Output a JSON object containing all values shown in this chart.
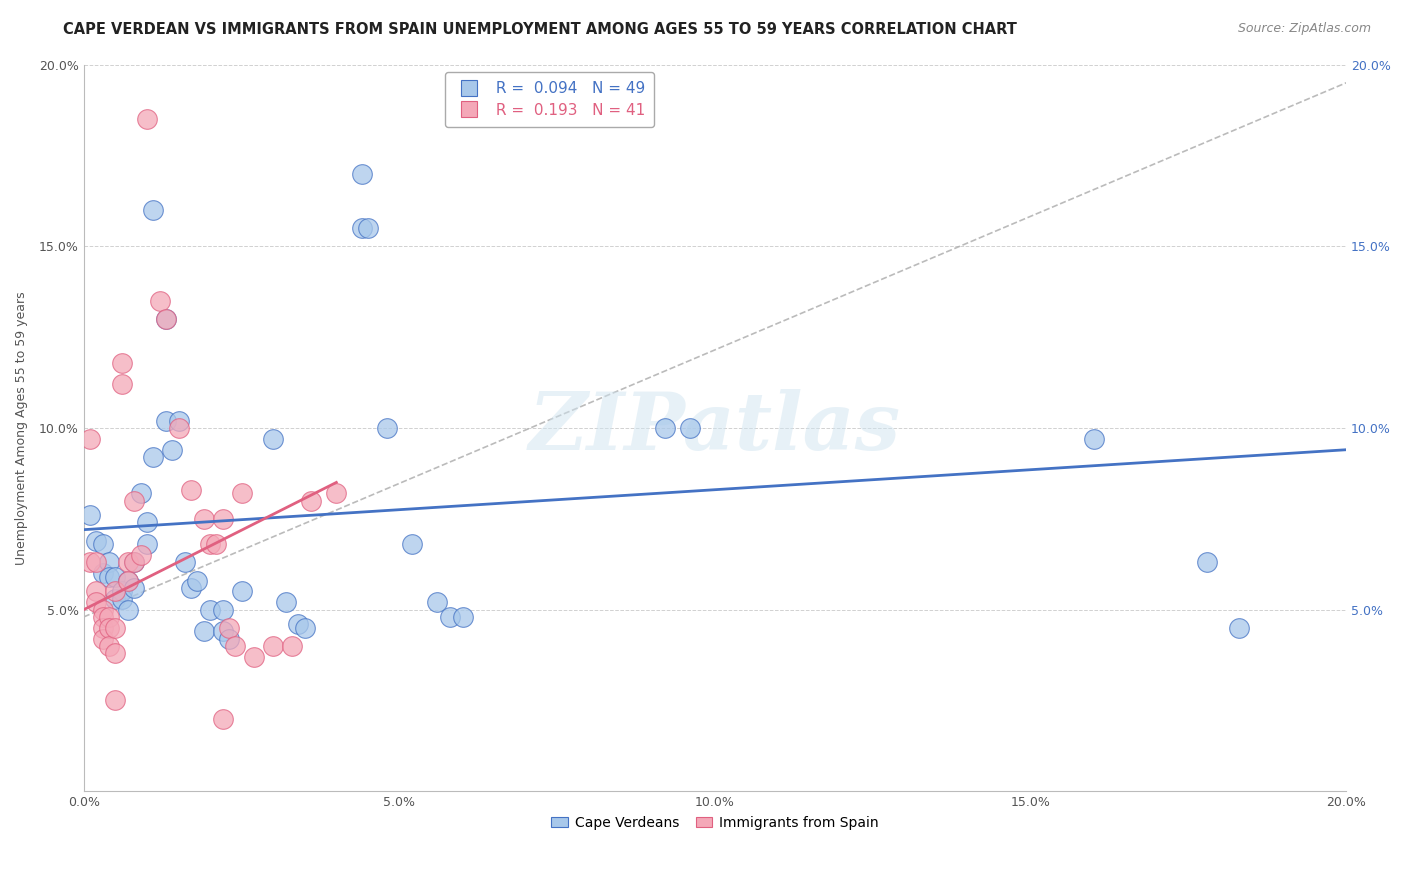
{
  "title": "CAPE VERDEAN VS IMMIGRANTS FROM SPAIN UNEMPLOYMENT AMONG AGES 55 TO 59 YEARS CORRELATION CHART",
  "source": "Source: ZipAtlas.com",
  "ylabel": "Unemployment Among Ages 55 to 59 years",
  "xlim": [
    0.0,
    0.2
  ],
  "ylim": [
    0.0,
    0.2
  ],
  "xticks": [
    0.0,
    0.05,
    0.1,
    0.15,
    0.2
  ],
  "yticks": [
    0.05,
    0.1,
    0.15,
    0.2
  ],
  "legend_entries": [
    {
      "label": "Cape Verdeans",
      "R": "0.094",
      "N": "49",
      "color": "#a8c8ea",
      "line_color": "#4472c4"
    },
    {
      "label": "Immigrants from Spain",
      "R": "0.193",
      "N": "41",
      "color": "#f4a8b8",
      "line_color": "#e06080"
    }
  ],
  "watermark": "ZIPatlas",
  "blue_scatter": [
    [
      0.001,
      0.076
    ],
    [
      0.002,
      0.069
    ],
    [
      0.003,
      0.068
    ],
    [
      0.003,
      0.06
    ],
    [
      0.004,
      0.063
    ],
    [
      0.004,
      0.059
    ],
    [
      0.005,
      0.059
    ],
    [
      0.005,
      0.053
    ],
    [
      0.006,
      0.055
    ],
    [
      0.006,
      0.053
    ],
    [
      0.007,
      0.058
    ],
    [
      0.007,
      0.05
    ],
    [
      0.008,
      0.063
    ],
    [
      0.008,
      0.056
    ],
    [
      0.009,
      0.082
    ],
    [
      0.01,
      0.074
    ],
    [
      0.01,
      0.068
    ],
    [
      0.011,
      0.16
    ],
    [
      0.011,
      0.092
    ],
    [
      0.013,
      0.13
    ],
    [
      0.013,
      0.102
    ],
    [
      0.014,
      0.094
    ],
    [
      0.015,
      0.102
    ],
    [
      0.016,
      0.063
    ],
    [
      0.017,
      0.056
    ],
    [
      0.018,
      0.058
    ],
    [
      0.019,
      0.044
    ],
    [
      0.02,
      0.05
    ],
    [
      0.022,
      0.05
    ],
    [
      0.022,
      0.044
    ],
    [
      0.023,
      0.042
    ],
    [
      0.025,
      0.055
    ],
    [
      0.03,
      0.097
    ],
    [
      0.032,
      0.052
    ],
    [
      0.034,
      0.046
    ],
    [
      0.035,
      0.045
    ],
    [
      0.044,
      0.17
    ],
    [
      0.044,
      0.155
    ],
    [
      0.045,
      0.155
    ],
    [
      0.048,
      0.1
    ],
    [
      0.052,
      0.068
    ],
    [
      0.056,
      0.052
    ],
    [
      0.058,
      0.048
    ],
    [
      0.06,
      0.048
    ],
    [
      0.092,
      0.1
    ],
    [
      0.096,
      0.1
    ],
    [
      0.16,
      0.097
    ],
    [
      0.178,
      0.063
    ],
    [
      0.183,
      0.045
    ]
  ],
  "pink_scatter": [
    [
      0.001,
      0.097
    ],
    [
      0.001,
      0.063
    ],
    [
      0.002,
      0.063
    ],
    [
      0.002,
      0.055
    ],
    [
      0.002,
      0.052
    ],
    [
      0.003,
      0.05
    ],
    [
      0.003,
      0.048
    ],
    [
      0.003,
      0.045
    ],
    [
      0.003,
      0.042
    ],
    [
      0.004,
      0.048
    ],
    [
      0.004,
      0.045
    ],
    [
      0.004,
      0.04
    ],
    [
      0.005,
      0.055
    ],
    [
      0.005,
      0.045
    ],
    [
      0.005,
      0.038
    ],
    [
      0.005,
      0.025
    ],
    [
      0.006,
      0.118
    ],
    [
      0.006,
      0.112
    ],
    [
      0.007,
      0.063
    ],
    [
      0.007,
      0.058
    ],
    [
      0.008,
      0.08
    ],
    [
      0.008,
      0.063
    ],
    [
      0.009,
      0.065
    ],
    [
      0.01,
      0.185
    ],
    [
      0.012,
      0.135
    ],
    [
      0.013,
      0.13
    ],
    [
      0.015,
      0.1
    ],
    [
      0.017,
      0.083
    ],
    [
      0.019,
      0.075
    ],
    [
      0.02,
      0.068
    ],
    [
      0.021,
      0.068
    ],
    [
      0.022,
      0.075
    ],
    [
      0.022,
      0.02
    ],
    [
      0.023,
      0.045
    ],
    [
      0.024,
      0.04
    ],
    [
      0.025,
      0.082
    ],
    [
      0.027,
      0.037
    ],
    [
      0.03,
      0.04
    ],
    [
      0.033,
      0.04
    ],
    [
      0.036,
      0.08
    ],
    [
      0.04,
      0.082
    ]
  ],
  "blue_line": {
    "x": [
      0.0,
      0.2
    ],
    "y": [
      0.072,
      0.094
    ]
  },
  "pink_line": {
    "x": [
      0.0,
      0.04
    ],
    "y": [
      0.05,
      0.085
    ]
  },
  "gray_dash_line": {
    "x": [
      0.0,
      0.2
    ],
    "y": [
      0.048,
      0.195
    ]
  },
  "title_fontsize": 10.5,
  "source_fontsize": 9,
  "tick_fontsize": 9,
  "label_fontsize": 9,
  "legend_fontsize": 11
}
